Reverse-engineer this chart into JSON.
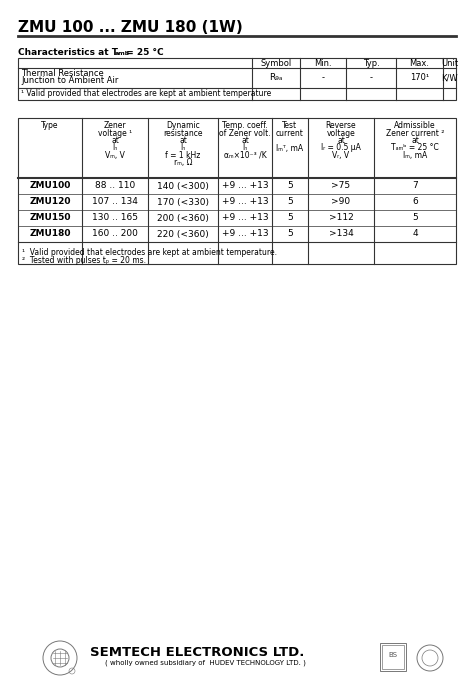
{
  "title": "ZMU 100 ... ZMU 180 (1W)",
  "char_label": "Characteristics at T",
  "char_sub": "amb",
  "char_rest": " = 25 °C",
  "t1_headers": [
    "",
    "Symbol",
    "Min.",
    "Typ.",
    "Max.",
    "Unit"
  ],
  "t1_row_label1": "Thermal Resistance",
  "t1_row_label2": "Junction to Ambient Air",
  "t1_symbol": "R₉ₐ",
  "t1_min": "-",
  "t1_typ": "-",
  "t1_max": "170¹",
  "t1_unit": "K/W",
  "t1_footnote": "¹ Valid provided that electrodes are kept at ambient temperature",
  "t2_col0": "Type",
  "t2_col1a": "Zener",
  "t2_col1b": "voltage ¹",
  "t2_col1c": "at",
  "t2_col1d": "Iₙ",
  "t2_col1e": "Vₘ, V",
  "t2_col2a": "Dynamic",
  "t2_col2b": "resistance",
  "t2_col2c": "at",
  "t2_col2d": "Iₙ",
  "t2_col2e": "f = 1 kHz",
  "t2_col2f": "rₘ, Ω",
  "t2_col3a": "Temp. coeff.",
  "t2_col3b": "of Zener volt.",
  "t2_col3c": "at",
  "t2_col3d": "Iₙ",
  "t2_col3e": "αₘ×10⁻³ /K",
  "t2_col4a": "Test",
  "t2_col4b": "current",
  "t2_col4c": "",
  "t2_col4d": "Iₘᵀ, mA",
  "t2_col5a": "Reverse",
  "t2_col5b": "voltage",
  "t2_col5c": "at",
  "t2_col5d": "Iᵣ = 0.5 μA",
  "t2_col5e": "Vᵣ, V",
  "t2_col6a": "Admissible",
  "t2_col6b": "Zener current ²",
  "t2_col6c": "at",
  "t2_col6d": "Tₐₘᵇ = 25 °C",
  "t2_col6e": "Iₘ, mA",
  "t2_rows": [
    [
      "ZMU100",
      "88 .. 110",
      "140 (<300)",
      "+9 ... +13",
      "5",
      ">75",
      "7"
    ],
    [
      "ZMU120",
      "107 .. 134",
      "170 (<330)",
      "+9 ... +13",
      "5",
      ">90",
      "6"
    ],
    [
      "ZMU150",
      "130 .. 165",
      "200 (<360)",
      "+9 ... +13",
      "5",
      ">112",
      "5"
    ],
    [
      "ZMU180",
      "160 .. 200",
      "220 (<360)",
      "+9 ... +13",
      "5",
      ">134",
      "4"
    ]
  ],
  "fn1": "¹  Valid provided that electrodes are kept at ambient temperature.",
  "fn2": "²  Tested with pulses tₚ = 20 ms.",
  "footer_name": "SEMTECH ELECTRONICS LTD.",
  "footer_sub": "( wholly owned subsidiary of  HUDEV TECHNOLOGY LTD. )",
  "bg": "#ffffff",
  "lc": "#333333"
}
